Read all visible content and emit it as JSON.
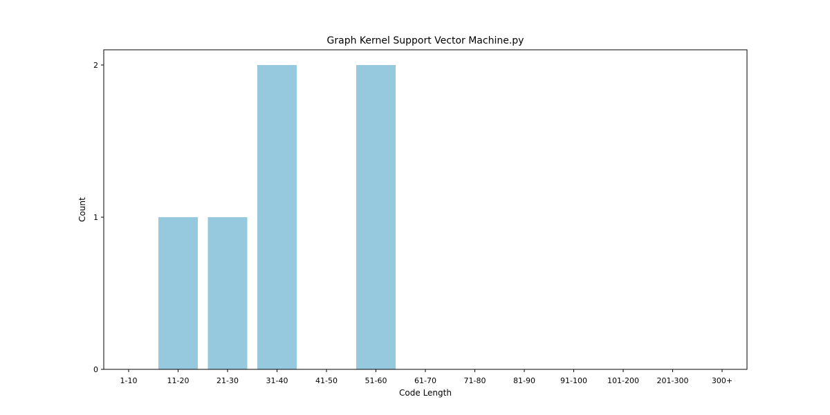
{
  "chart_data": {
    "type": "bar",
    "title": "Graph Kernel Support Vector Machine.py",
    "xlabel": "Code Length",
    "ylabel": "Count",
    "categories": [
      "1-10",
      "11-20",
      "21-30",
      "31-40",
      "41-50",
      "51-60",
      "61-70",
      "71-80",
      "81-90",
      "91-100",
      "101-200",
      "201-300",
      "300+"
    ],
    "values": [
      0,
      1,
      1,
      2,
      0,
      2,
      0,
      0,
      0,
      0,
      0,
      0,
      0
    ],
    "ylim": [
      0,
      2.1
    ],
    "yticks": [
      0,
      1,
      2
    ],
    "bar_color": "#96c9de",
    "grid": false,
    "legend": "none"
  }
}
